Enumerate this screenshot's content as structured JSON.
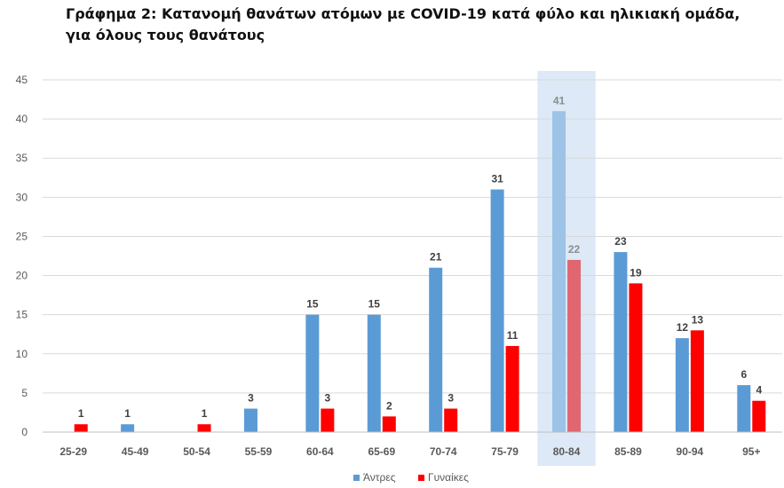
{
  "title": "Γράφημα 2: Κατανομή θανάτων ατόμων με COVID-19 κατά φύλο και ηλικιακή ομάδα, για όλους τους θανάτους",
  "chart_data": {
    "type": "bar",
    "title": "Γράφημα 2: Κατανομή θανάτων ατόμων με COVID-19 κατά φύλο και ηλικιακή ομάδα, για όλους τους θανάτους",
    "categories": [
      "25-29",
      "45-49",
      "50-54",
      "55-59",
      "60-64",
      "65-69",
      "70-74",
      "75-79",
      "80-84",
      "85-89",
      "90-94",
      "95+"
    ],
    "series": [
      {
        "name": "Άντρες",
        "color": "#5b9bd5",
        "values": [
          null,
          1,
          null,
          3,
          15,
          15,
          21,
          31,
          41,
          23,
          12,
          6
        ]
      },
      {
        "name": "Γυναίκες",
        "color": "#ff0000",
        "values": [
          1,
          null,
          1,
          null,
          3,
          2,
          3,
          11,
          22,
          19,
          13,
          4
        ]
      }
    ],
    "highlight_category": "80-84",
    "highlight_colors": {
      "band": "#dde9f7",
      "Άντρες": "#9dc3e6",
      "Γυναίκες": "#e06670",
      "label": "#8c8c8c"
    },
    "ylim": [
      0,
      45
    ],
    "yticks": [
      0,
      5,
      10,
      15,
      20,
      25,
      30,
      35,
      40,
      45
    ],
    "grid": true,
    "legend_position": "bottom",
    "xlabel": "",
    "ylabel": ""
  }
}
